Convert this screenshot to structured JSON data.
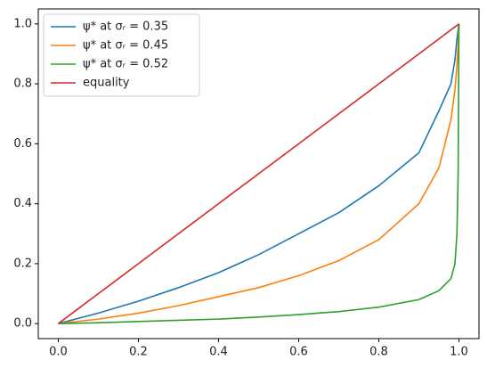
{
  "chart_data": {
    "type": "line",
    "x": [
      0,
      0.1,
      0.2,
      0.3,
      0.4,
      0.5,
      0.6,
      0.7,
      0.8,
      0.9,
      0.95,
      0.98,
      0.99,
      0.995,
      0.998,
      1
    ],
    "series": [
      {
        "name": "ψ* at σᵣ = 0.35",
        "color": "#1f77b4",
        "values": [
          0,
          0.035,
          0.075,
          0.12,
          0.17,
          0.23,
          0.3,
          0.37,
          0.46,
          0.57,
          0.71,
          0.8,
          0.88,
          0.95,
          0.98,
          1
        ]
      },
      {
        "name": "ψ* at σᵣ = 0.45",
        "color": "#ff7f0e",
        "values": [
          0,
          0.015,
          0.035,
          0.06,
          0.09,
          0.12,
          0.16,
          0.21,
          0.28,
          0.4,
          0.52,
          0.68,
          0.78,
          0.86,
          0.93,
          1
        ]
      },
      {
        "name": "ψ* at σᵣ = 0.52",
        "color": "#2ca02c",
        "values": [
          0,
          0.003,
          0.007,
          0.011,
          0.015,
          0.022,
          0.03,
          0.04,
          0.055,
          0.08,
          0.11,
          0.15,
          0.2,
          0.3,
          0.5,
          1
        ]
      },
      {
        "name": "equality",
        "color": "#d62728",
        "values": [
          0,
          0.1,
          0.2,
          0.3,
          0.4,
          0.5,
          0.6,
          0.7,
          0.8,
          0.9,
          0.95,
          0.98,
          0.99,
          0.995,
          0.998,
          1
        ]
      }
    ],
    "xlim": [
      -0.05,
      1.05
    ],
    "ylim": [
      -0.05,
      1.05
    ],
    "xticks": [
      {
        "value": 0,
        "label": "0.0"
      },
      0.2,
      0.4,
      0.6,
      0.8,
      {
        "value": 1,
        "label": "1.0"
      }
    ],
    "yticks": [
      {
        "value": 0,
        "label": "0.0"
      },
      0.2,
      0.4,
      0.6,
      0.8,
      {
        "value": 1,
        "label": "1.0"
      }
    ],
    "grid": false,
    "legend": "upper-left"
  }
}
